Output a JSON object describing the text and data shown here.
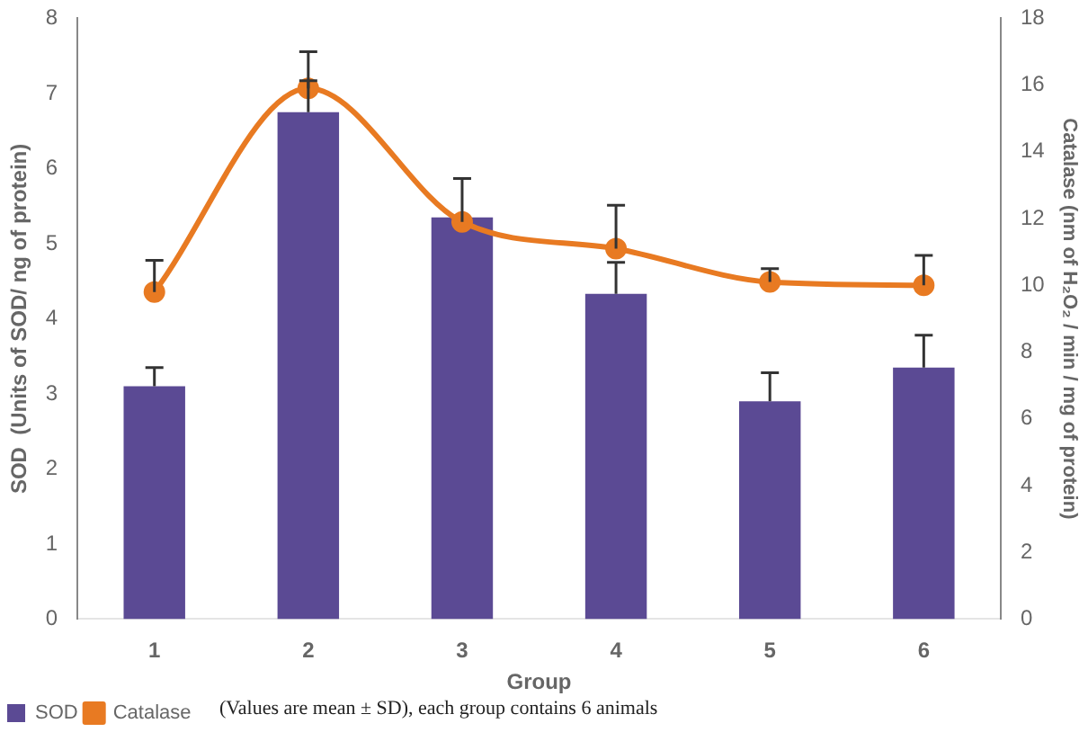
{
  "chart_data": {
    "type": "bar",
    "xlabel": "Group",
    "ylabel": "SOD  (Units of SOD/ ng of protein)",
    "y2label": "Catalase (nm of H₂O₂ / min / mg of protein)",
    "categories": [
      "1",
      "2",
      "3",
      "4",
      "5",
      "6"
    ],
    "series": [
      {
        "name": "SOD",
        "color": "#5b4a94",
        "values": [
          3.1,
          6.75,
          5.35,
          4.33,
          2.9,
          3.35
        ],
        "errors": [
          [
            3.1,
            3.35
          ],
          [
            6.75,
            7.17
          ],
          null,
          [
            4.33,
            4.75
          ],
          [
            2.9,
            3.28
          ],
          [
            3.35,
            3.78
          ]
        ]
      },
      {
        "name": "Catalase",
        "type": "line",
        "axis": "y2",
        "color": "#e87a22",
        "values": [
          9.8,
          15.9,
          11.9,
          11.1,
          10.1,
          10.0
        ],
        "errors": [
          [
            9.8,
            10.75
          ],
          [
            15.9,
            17.0
          ],
          [
            11.9,
            13.2
          ],
          [
            11.1,
            12.4
          ],
          [
            10.1,
            10.5
          ],
          [
            10.0,
            10.9
          ]
        ]
      }
    ],
    "ylim": [
      0,
      8
    ],
    "yticks": [
      0,
      1,
      2,
      3,
      4,
      5,
      6,
      7,
      8
    ],
    "y2lim": [
      0,
      18
    ],
    "y2ticks": [
      0,
      2,
      4,
      6,
      8,
      10,
      12,
      14,
      16,
      18
    ],
    "marker": "circle",
    "grid": false,
    "legend": "bottom left",
    "annotations": [
      "(Values are mean ± SD), each group contains 6 animals"
    ]
  }
}
